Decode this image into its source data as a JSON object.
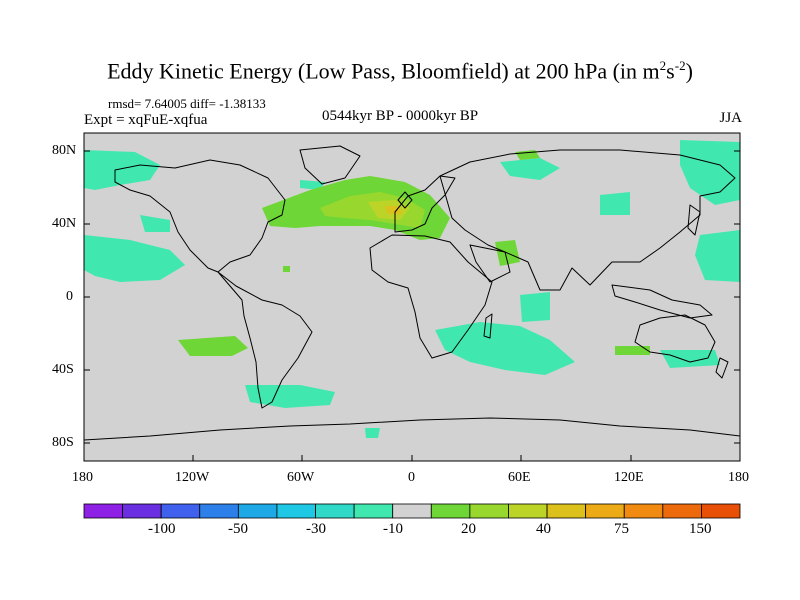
{
  "title": {
    "main": "Eddy Kinetic Energy (Low Pass, Bloomfield) at 200 hPa (in m",
    "exp1": "2",
    "mid": "s",
    "exp2": "-2",
    "close": ")"
  },
  "stats": "rmsd= 7.64005 diff= -1.38133",
  "experiment": "Expt = xqFuE-xqfua",
  "period": "0544kyr BP - 0000kyr BP",
  "season": "JJA",
  "lat_labels": [
    "80N",
    "40N",
    "0",
    "40S",
    "80S"
  ],
  "lon_labels": [
    "180",
    "120W",
    "60W",
    "0",
    "60E",
    "120E",
    "180"
  ],
  "colorbar": {
    "colors": [
      "#8f20e6",
      "#6a2fe0",
      "#4060ee",
      "#2d80ea",
      "#1fa8e6",
      "#1ec8e4",
      "#30d8c8",
      "#40e8b0",
      "#d2d2d2",
      "#6ed636",
      "#98d82e",
      "#bcd428",
      "#dcc01c",
      "#ecaa16",
      "#f08a10",
      "#ec6a0c",
      "#e85008"
    ],
    "labels": [
      "-100",
      "-50",
      "-30",
      "-10",
      "20",
      "40",
      "75",
      "150"
    ]
  },
  "colors": {
    "ocean": "#d2d2d2",
    "neg_light": "#40e8b0",
    "pos_light": "#6ed636",
    "pos_mid": "#98d82e",
    "pos_high": "#bcd428",
    "pos_peak": "#dcc01c",
    "neg_mid": "#1ec8e4"
  }
}
